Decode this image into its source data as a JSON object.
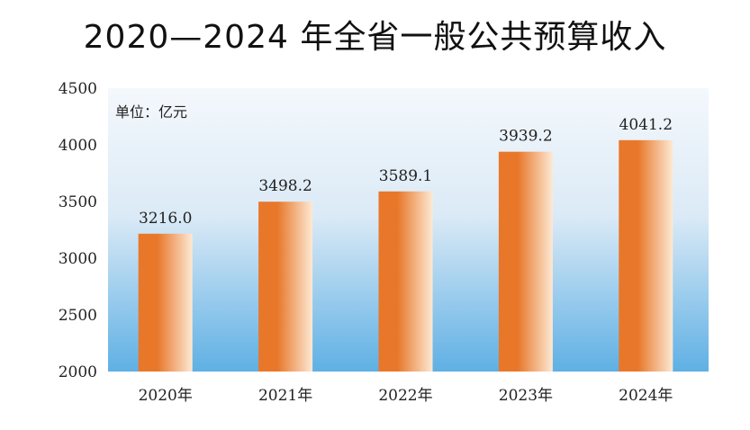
{
  "chart_data": {
    "type": "bar",
    "title": "2020—2024 年全省一般公共预算收入",
    "unit_label": "单位：亿元",
    "categories": [
      "2020年",
      "2021年",
      "2022年",
      "2023年",
      "2024年"
    ],
    "values": [
      3216.0,
      3498.2,
      3589.1,
      3939.2,
      4041.2
    ],
    "value_labels": [
      "3216.0",
      "3498.2",
      "3589.1",
      "3939.2",
      "4041.2"
    ],
    "ylim": [
      2000,
      4500
    ],
    "yticks": [
      "2000",
      "2500",
      "3000",
      "3500",
      "4000",
      "4500"
    ],
    "xlabel": "",
    "ylabel": "",
    "grid": false,
    "colors": {
      "bar_dark": "#e8772a",
      "bar_light": "#fde9d4",
      "bg_top": "#f4f8fc",
      "bg_bottom": "#5fb0e4"
    }
  }
}
